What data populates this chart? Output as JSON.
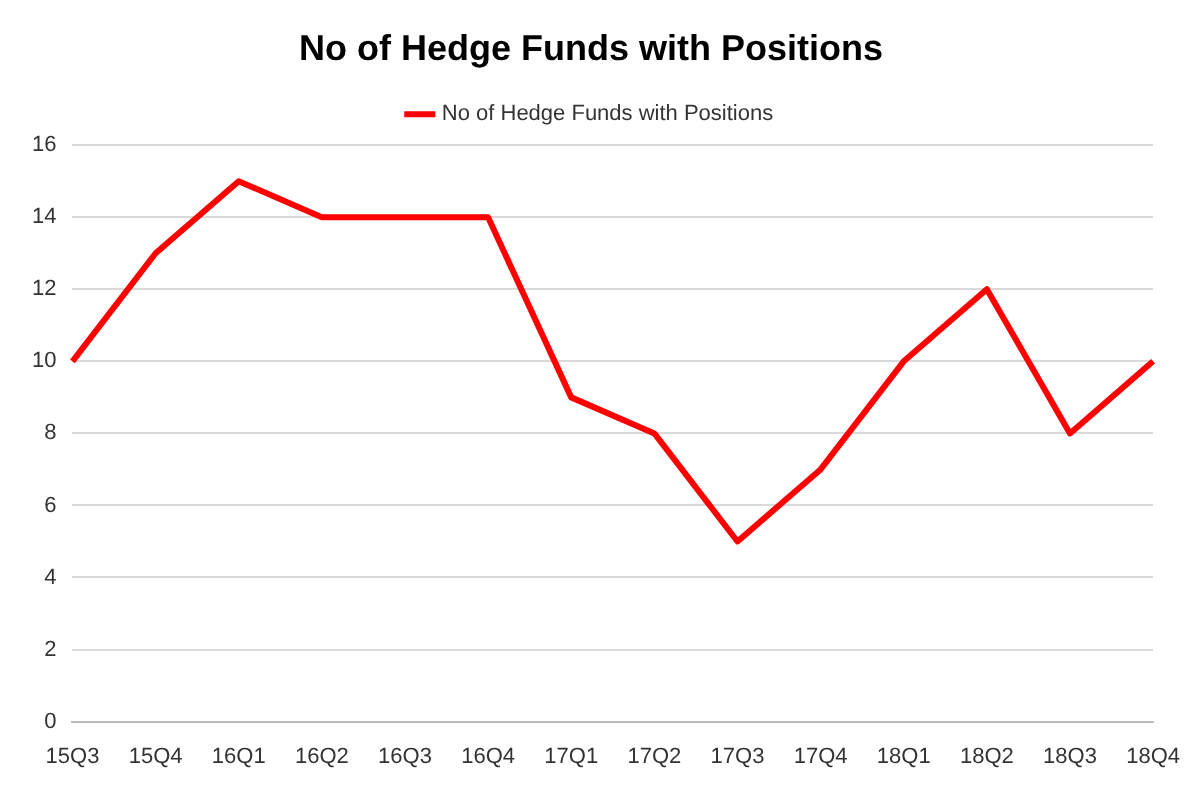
{
  "chart_data": {
    "type": "line",
    "title": "No of Hedge Funds with Positions",
    "categories": [
      "15Q3",
      "15Q4",
      "16Q1",
      "16Q2",
      "16Q3",
      "16Q4",
      "17Q1",
      "17Q2",
      "17Q3",
      "17Q4",
      "18Q1",
      "18Q2",
      "18Q3",
      "18Q4"
    ],
    "series": [
      {
        "name": "No of Hedge Funds with Positions",
        "color": "#ff0000",
        "values": [
          10,
          13,
          15,
          14,
          14,
          14,
          9,
          8,
          5,
          7,
          10,
          12,
          8,
          10
        ]
      }
    ],
    "ylim": [
      0,
      16
    ],
    "yticks": [
      0,
      2,
      4,
      6,
      8,
      10,
      12,
      14,
      16
    ],
    "grid": "y",
    "legend": "top",
    "marker": "none",
    "line_style": "solid"
  }
}
